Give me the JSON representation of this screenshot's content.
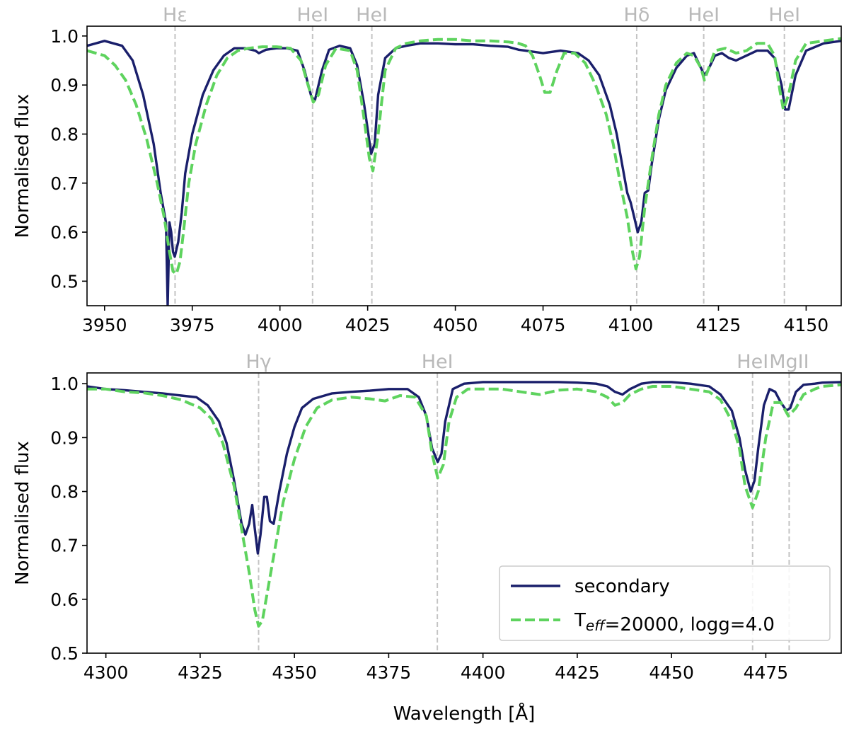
{
  "chart_data": [
    {
      "type": "line",
      "xlabel": "",
      "ylabel": "Normalised flux",
      "xlim": [
        3945,
        4160
      ],
      "ylim": [
        0.45,
        1.02
      ],
      "xticks": [
        3950,
        3975,
        4000,
        4025,
        4050,
        4075,
        4100,
        4125,
        4150
      ],
      "yticks": [
        0.5,
        0.6,
        0.7,
        0.8,
        0.9,
        1.0
      ],
      "ytick_labels": [
        "0.5",
        "0.6",
        "0.7",
        "0.8",
        "0.9",
        "1.0"
      ],
      "grid": false,
      "lines": [
        {
          "label": "Hε",
          "x": 3970.1
        },
        {
          "label": "HeI",
          "x": 4009.3
        },
        {
          "label": "HeI",
          "x": 4026.2
        },
        {
          "label": "Hδ",
          "x": 4101.7
        },
        {
          "label": "HeI",
          "x": 4120.8
        },
        {
          "label": "HeI",
          "x": 4143.8
        }
      ],
      "series": [
        {
          "name": "secondary",
          "style": "solid",
          "color": "#1a1f6b",
          "x": [
            3945,
            3950,
            3955,
            3958,
            3961,
            3964,
            3966,
            3967.5,
            3968,
            3968.5,
            3969,
            3969.5,
            3970,
            3971,
            3972,
            3973,
            3975,
            3978,
            3981,
            3984,
            3987,
            3990,
            3993,
            3994,
            3996,
            3999,
            4002,
            4005,
            4007,
            4009,
            4010,
            4012,
            4014,
            4017,
            4020,
            4022,
            4024,
            4026,
            4027,
            4028,
            4030,
            4033,
            4036,
            4040,
            4045,
            4050,
            4055,
            4060,
            4065,
            4068,
            4070,
            4075,
            4080,
            4085,
            4088,
            4091,
            4094,
            4096,
            4098,
            4099,
            4100,
            4101,
            4102,
            4103,
            4104,
            4105,
            4106,
            4108,
            4110,
            4113,
            4116,
            4118,
            4120,
            4121,
            4122,
            4124,
            4126,
            4128,
            4130,
            4133,
            4136,
            4139,
            4141,
            4143,
            4144,
            4145,
            4147,
            4150,
            4155,
            4160
          ],
          "y": [
            0.98,
            0.99,
            0.98,
            0.95,
            0.88,
            0.78,
            0.68,
            0.62,
            0.45,
            0.62,
            0.6,
            0.56,
            0.55,
            0.58,
            0.64,
            0.72,
            0.8,
            0.88,
            0.93,
            0.96,
            0.975,
            0.975,
            0.97,
            0.965,
            0.972,
            0.975,
            0.975,
            0.97,
            0.93,
            0.875,
            0.87,
            0.93,
            0.972,
            0.98,
            0.975,
            0.94,
            0.86,
            0.76,
            0.78,
            0.88,
            0.955,
            0.975,
            0.98,
            0.985,
            0.985,
            0.983,
            0.983,
            0.98,
            0.978,
            0.972,
            0.97,
            0.965,
            0.97,
            0.965,
            0.95,
            0.92,
            0.86,
            0.8,
            0.72,
            0.68,
            0.66,
            0.63,
            0.6,
            0.62,
            0.68,
            0.685,
            0.74,
            0.83,
            0.89,
            0.935,
            0.96,
            0.965,
            0.935,
            0.92,
            0.93,
            0.96,
            0.965,
            0.955,
            0.95,
            0.96,
            0.97,
            0.97,
            0.955,
            0.9,
            0.85,
            0.85,
            0.92,
            0.97,
            0.985,
            0.99
          ]
        },
        {
          "name": "T$_{eff}$=20000, logg=4.0",
          "style": "dashed",
          "color": "#5ed35e",
          "x": [
            3945,
            3950,
            3953,
            3956,
            3959,
            3962,
            3965,
            3967,
            3968.5,
            3969.5,
            3970.5,
            3971.5,
            3972.5,
            3974,
            3976,
            3979,
            3982,
            3985,
            3988,
            3991,
            3995,
            3999,
            4003,
            4006,
            4008,
            4009.5,
            4011,
            4013,
            4016,
            4020,
            4022,
            4024,
            4025.5,
            4026.5,
            4028,
            4030,
            4033,
            4036,
            4040,
            4045,
            4050,
            4055,
            4060,
            4065,
            4068,
            4070,
            4072,
            4074,
            4075.5,
            4077,
            4079,
            4081,
            4084,
            4087,
            4090,
            4093,
            4095,
            4097,
            4099,
            4100.5,
            4101.5,
            4102.5,
            4104,
            4106,
            4108,
            4110,
            4113,
            4116,
            4118,
            4120,
            4121,
            4122,
            4124,
            4127,
            4130,
            4133,
            4136,
            4139,
            4141,
            4142.5,
            4143.5,
            4145,
            4147,
            4150,
            4155,
            4160
          ],
          "y": [
            0.97,
            0.96,
            0.94,
            0.91,
            0.86,
            0.79,
            0.7,
            0.63,
            0.56,
            0.52,
            0.515,
            0.54,
            0.6,
            0.7,
            0.78,
            0.86,
            0.92,
            0.955,
            0.97,
            0.975,
            0.978,
            0.978,
            0.975,
            0.95,
            0.9,
            0.865,
            0.88,
            0.94,
            0.975,
            0.97,
            0.93,
            0.83,
            0.75,
            0.725,
            0.8,
            0.93,
            0.975,
            0.985,
            0.99,
            0.993,
            0.993,
            0.99,
            0.99,
            0.988,
            0.985,
            0.98,
            0.96,
            0.92,
            0.885,
            0.885,
            0.93,
            0.965,
            0.965,
            0.945,
            0.9,
            0.84,
            0.78,
            0.7,
            0.63,
            0.56,
            0.525,
            0.55,
            0.65,
            0.75,
            0.84,
            0.9,
            0.945,
            0.965,
            0.96,
            0.935,
            0.91,
            0.93,
            0.97,
            0.975,
            0.965,
            0.97,
            0.985,
            0.985,
            0.96,
            0.89,
            0.85,
            0.88,
            0.95,
            0.985,
            0.99,
            0.995
          ]
        }
      ]
    },
    {
      "type": "line",
      "xlabel": "Wavelength [Å]",
      "ylabel": "Normalised flux",
      "xlim": [
        4295,
        4495
      ],
      "ylim": [
        0.5,
        1.02
      ],
      "xticks": [
        4300,
        4325,
        4350,
        4375,
        4400,
        4425,
        4450,
        4475
      ],
      "yticks": [
        0.5,
        0.6,
        0.7,
        0.8,
        0.9,
        1.0
      ],
      "ytick_labels": [
        "0.5",
        "0.6",
        "0.7",
        "0.8",
        "0.9",
        "1.0"
      ],
      "grid": false,
      "legend_position": "lower-right",
      "lines": [
        {
          "label": "Hγ",
          "x": 4340.5
        },
        {
          "label": "HeI",
          "x": 4387.9
        },
        {
          "label": "HeI",
          "x": 4471.5
        },
        {
          "label": "MgII",
          "x": 4481.2
        }
      ],
      "series": [
        {
          "name": "secondary",
          "style": "solid",
          "color": "#1a1f6b",
          "x": [
            4295,
            4300,
            4305,
            4310,
            4315,
            4320,
            4324,
            4327,
            4330,
            4332,
            4334,
            4336,
            4337,
            4338,
            4338.8,
            4339.5,
            4340.3,
            4341,
            4342,
            4342.7,
            4343.5,
            4344.5,
            4346,
            4348,
            4350,
            4352,
            4355,
            4360,
            4365,
            4370,
            4375,
            4380,
            4383,
            4385,
            4386.5,
            4388,
            4389,
            4390,
            4392,
            4395,
            4400,
            4405,
            4410,
            4415,
            4420,
            4425,
            4430,
            4433,
            4435,
            4437,
            4439,
            4442,
            4445,
            4450,
            4455,
            4460,
            4463,
            4466,
            4468,
            4469.5,
            4471,
            4472,
            4473,
            4474.5,
            4476,
            4477.5,
            4479,
            4480.5,
            4481.5,
            4483,
            4485,
            4488,
            4490,
            4495
          ],
          "y": [
            0.995,
            0.99,
            0.988,
            0.985,
            0.982,
            0.978,
            0.975,
            0.96,
            0.93,
            0.89,
            0.82,
            0.74,
            0.72,
            0.74,
            0.775,
            0.73,
            0.685,
            0.72,
            0.79,
            0.79,
            0.745,
            0.74,
            0.8,
            0.87,
            0.92,
            0.955,
            0.972,
            0.982,
            0.985,
            0.987,
            0.99,
            0.99,
            0.975,
            0.94,
            0.88,
            0.855,
            0.87,
            0.93,
            0.99,
            1.0,
            1.003,
            1.003,
            1.003,
            1.003,
            1.003,
            1.002,
            1.0,
            0.995,
            0.985,
            0.98,
            0.99,
            1.0,
            1.003,
            1.003,
            1.0,
            0.995,
            0.98,
            0.95,
            0.9,
            0.84,
            0.8,
            0.82,
            0.88,
            0.96,
            0.99,
            0.985,
            0.965,
            0.95,
            0.955,
            0.985,
            0.998,
            1.0,
            1.002,
            1.003
          ]
        },
        {
          "name": "T$_{eff}$=20000, logg=4.0",
          "style": "dashed",
          "color": "#5ed35e",
          "x": [
            4295,
            4300,
            4305,
            4310,
            4315,
            4320,
            4325,
            4328,
            4331,
            4334,
            4336,
            4338,
            4339.5,
            4340.5,
            4341.5,
            4343,
            4345,
            4347,
            4350,
            4353,
            4356,
            4360,
            4365,
            4370,
            4374,
            4378,
            4382,
            4385,
            4386.5,
            4388,
            4389.5,
            4391,
            4393,
            4396,
            4400,
            4405,
            4410,
            4415,
            4420,
            4425,
            4430,
            4433,
            4435,
            4437,
            4439,
            4442,
            4445,
            4450,
            4455,
            4460,
            4463,
            4466,
            4468,
            4469.5,
            4471.5,
            4473,
            4475,
            4477,
            4479,
            4481,
            4483,
            4485,
            4488,
            4490,
            4495
          ],
          "y": [
            0.99,
            0.99,
            0.985,
            0.983,
            0.978,
            0.97,
            0.955,
            0.935,
            0.89,
            0.81,
            0.73,
            0.65,
            0.58,
            0.55,
            0.56,
            0.62,
            0.7,
            0.78,
            0.86,
            0.92,
            0.955,
            0.97,
            0.975,
            0.972,
            0.968,
            0.978,
            0.975,
            0.94,
            0.87,
            0.825,
            0.85,
            0.93,
            0.975,
            0.99,
            0.99,
            0.99,
            0.985,
            0.98,
            0.988,
            0.99,
            0.985,
            0.975,
            0.96,
            0.965,
            0.98,
            0.99,
            0.995,
            0.995,
            0.99,
            0.985,
            0.97,
            0.93,
            0.88,
            0.81,
            0.77,
            0.8,
            0.9,
            0.965,
            0.965,
            0.94,
            0.955,
            0.98,
            0.99,
            0.995,
            0.998
          ]
        }
      ]
    }
  ]
}
